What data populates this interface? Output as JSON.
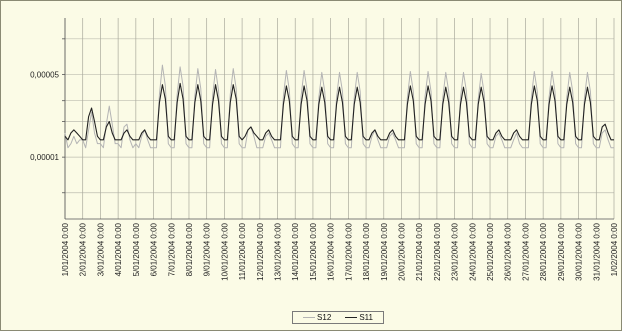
{
  "chart_data": {
    "type": "line",
    "title": "",
    "xlabel": "",
    "ylabel": "",
    "y_scale": "log",
    "ylim": [
      3e-06,
      0.00015
    ],
    "y_tick_labels": [
      {
        "value": 5e-05,
        "label": "0,00005"
      },
      {
        "value": 1e-05,
        "label": "0,00001"
      }
    ],
    "x_tick_labels": [
      "1/01/2004 0:00",
      "2/01/2004 0:00",
      "3/01/2004 0:00",
      "4/01/2004 0:00",
      "5/01/2004 0:00",
      "6/01/2004 0:00",
      "7/01/2004 0:00",
      "8/01/2004 0:00",
      "9/01/2004 0:00",
      "10/01/2004 0:00",
      "11/01/2004 0:00",
      "12/01/2004 0:00",
      "13/01/2004 0:00",
      "14/01/2004 0:00",
      "15/01/2004 0:00",
      "16/01/2004 0:00",
      "17/01/2004 0:00",
      "18/01/2004 0:00",
      "19/01/2004 0:00",
      "20/01/2004 0:00",
      "21/01/2004 0:00",
      "22/01/2004 0:00",
      "23/01/2004 0:00",
      "24/01/2004 0:00",
      "25/01/2004 0:00",
      "26/01/2004 0:00",
      "27/01/2004 0:00",
      "28/01/2004 0:00",
      "29/01/2004 0:00",
      "30/01/2004 0:00",
      "31/01/2004 0:00",
      "1/02/2004 0:00"
    ],
    "grid": true,
    "legend_position": "bottom",
    "samples_per_day": 6,
    "series": [
      {
        "name": "S12",
        "color": "#b4b4b4",
        "values": [
          1.6e-05,
          1.2e-05,
          1.3e-05,
          1.5e-05,
          1.3e-05,
          1.4e-05,
          1.4e-05,
          1.2e-05,
          1.7e-05,
          2.4e-05,
          1.6e-05,
          1.3e-05,
          1.3e-05,
          1.2e-05,
          1.9e-05,
          2.7e-05,
          1.9e-05,
          1.3e-05,
          1.3e-05,
          1.2e-05,
          1.8e-05,
          1.9e-05,
          1.4e-05,
          1.2e-05,
          1.3e-05,
          1.2e-05,
          1.5e-05,
          1.7e-05,
          1.4e-05,
          1.2e-05,
          1.2e-05,
          1.2e-05,
          3.4e-05,
          6e-05,
          4e-05,
          1.3e-05,
          1.2e-05,
          1.2e-05,
          3.4e-05,
          5.8e-05,
          4e-05,
          1.3e-05,
          1.2e-05,
          1.2e-05,
          3.3e-05,
          5.6e-05,
          3.8e-05,
          1.3e-05,
          1.2e-05,
          1.2e-05,
          3.3e-05,
          5.5e-05,
          3.7e-05,
          1.3e-05,
          1.2e-05,
          1.2e-05,
          3.4e-05,
          5.6e-05,
          3.8e-05,
          1.3e-05,
          1.2e-05,
          1.2e-05,
          1.7e-05,
          1.8e-05,
          1.5e-05,
          1.2e-05,
          1.2e-05,
          1.2e-05,
          1.5e-05,
          1.6e-05,
          1.4e-05,
          1.2e-05,
          1.2e-05,
          1.2e-05,
          3.3e-05,
          5.4e-05,
          3.7e-05,
          1.3e-05,
          1.2e-05,
          1.2e-05,
          3.3e-05,
          5.4e-05,
          3.7e-05,
          1.3e-05,
          1.2e-05,
          1.2e-05,
          3.2e-05,
          5.2e-05,
          3.6e-05,
          1.3e-05,
          1.2e-05,
          1.2e-05,
          3.2e-05,
          5.2e-05,
          3.6e-05,
          1.3e-05,
          1.2e-05,
          1.2e-05,
          3.2e-05,
          5.2e-05,
          3.6e-05,
          1.3e-05,
          1.2e-05,
          1.2e-05,
          1.5e-05,
          1.7e-05,
          1.4e-05,
          1.2e-05,
          1.2e-05,
          1.2e-05,
          1.5e-05,
          1.6e-05,
          1.4e-05,
          1.2e-05,
          1.2e-05,
          1.2e-05,
          3.2e-05,
          5.3e-05,
          3.6e-05,
          1.3e-05,
          1.2e-05,
          1.2e-05,
          3.3e-05,
          5.3e-05,
          3.6e-05,
          1.3e-05,
          1.2e-05,
          1.2e-05,
          3.2e-05,
          5.2e-05,
          3.6e-05,
          1.3e-05,
          1.2e-05,
          1.2e-05,
          3.2e-05,
          5.2e-05,
          3.6e-05,
          1.3e-05,
          1.2e-05,
          1.2e-05,
          3.1e-05,
          5.1e-05,
          3.5e-05,
          1.3e-05,
          1.2e-05,
          1.2e-05,
          1.5e-05,
          1.6e-05,
          1.4e-05,
          1.2e-05,
          1.2e-05,
          1.2e-05,
          1.4e-05,
          1.6e-05,
          1.3e-05,
          1.2e-05,
          1.2e-05,
          1.2e-05,
          3.2e-05,
          5.3e-05,
          3.6e-05,
          1.3e-05,
          1.2e-05,
          1.2e-05,
          3.2e-05,
          5.3e-05,
          3.6e-05,
          1.3e-05,
          1.2e-05,
          1.2e-05,
          3.2e-05,
          5.2e-05,
          3.6e-05,
          1.3e-05,
          1.2e-05,
          1.2e-05,
          3.2e-05,
          5.2e-05,
          3.6e-05,
          1.3e-05,
          1.2e-05,
          1.2e-05,
          1.6e-05,
          1.7e-05,
          1.4e-05,
          1.2e-05,
          1.2e-05
        ]
      },
      {
        "name": "S11",
        "color": "#222222",
        "values": [
          1.5e-05,
          1.4e-05,
          1.6e-05,
          1.7e-05,
          1.6e-05,
          1.5e-05,
          1.4e-05,
          1.4e-05,
          2.2e-05,
          2.6e-05,
          2e-05,
          1.5e-05,
          1.4e-05,
          1.4e-05,
          1.8e-05,
          2e-05,
          1.6e-05,
          1.4e-05,
          1.4e-05,
          1.4e-05,
          1.6e-05,
          1.7e-05,
          1.5e-05,
          1.4e-05,
          1.4e-05,
          1.4e-05,
          1.6e-05,
          1.7e-05,
          1.5e-05,
          1.4e-05,
          1.4e-05,
          1.4e-05,
          2.9e-05,
          4.1e-05,
          3.1e-05,
          1.5e-05,
          1.4e-05,
          1.4e-05,
          2.9e-05,
          4.2e-05,
          3.1e-05,
          1.5e-05,
          1.4e-05,
          1.4e-05,
          2.9e-05,
          4.1e-05,
          3e-05,
          1.5e-05,
          1.4e-05,
          1.4e-05,
          2.8e-05,
          4.1e-05,
          3e-05,
          1.5e-05,
          1.4e-05,
          1.4e-05,
          2.9e-05,
          4.1e-05,
          3.1e-05,
          1.5e-05,
          1.4e-05,
          1.5e-05,
          1.7e-05,
          1.8e-05,
          1.6e-05,
          1.5e-05,
          1.4e-05,
          1.4e-05,
          1.6e-05,
          1.7e-05,
          1.5e-05,
          1.4e-05,
          1.4e-05,
          1.4e-05,
          2.8e-05,
          4e-05,
          3e-05,
          1.5e-05,
          1.4e-05,
          1.4e-05,
          2.8e-05,
          4e-05,
          3e-05,
          1.5e-05,
          1.4e-05,
          1.4e-05,
          2.8e-05,
          3.9e-05,
          2.9e-05,
          1.5e-05,
          1.4e-05,
          1.4e-05,
          2.8e-05,
          3.9e-05,
          2.9e-05,
          1.5e-05,
          1.4e-05,
          1.4e-05,
          2.8e-05,
          3.9e-05,
          2.9e-05,
          1.5e-05,
          1.4e-05,
          1.4e-05,
          1.6e-05,
          1.7e-05,
          1.5e-05,
          1.4e-05,
          1.4e-05,
          1.4e-05,
          1.6e-05,
          1.7e-05,
          1.5e-05,
          1.4e-05,
          1.4e-05,
          1.4e-05,
          2.8e-05,
          4e-05,
          3e-05,
          1.5e-05,
          1.4e-05,
          1.4e-05,
          2.8e-05,
          4e-05,
          3e-05,
          1.5e-05,
          1.4e-05,
          1.4e-05,
          2.8e-05,
          3.9e-05,
          2.9e-05,
          1.5e-05,
          1.4e-05,
          1.4e-05,
          2.8e-05,
          3.9e-05,
          2.9e-05,
          1.5e-05,
          1.4e-05,
          1.4e-05,
          2.8e-05,
          3.9e-05,
          2.9e-05,
          1.5e-05,
          1.4e-05,
          1.4e-05,
          1.6e-05,
          1.7e-05,
          1.5e-05,
          1.4e-05,
          1.4e-05,
          1.4e-05,
          1.6e-05,
          1.7e-05,
          1.5e-05,
          1.4e-05,
          1.4e-05,
          1.4e-05,
          2.8e-05,
          4e-05,
          3e-05,
          1.5e-05,
          1.4e-05,
          1.4e-05,
          2.8e-05,
          4e-05,
          3e-05,
          1.5e-05,
          1.4e-05,
          1.4e-05,
          2.8e-05,
          3.9e-05,
          2.9e-05,
          1.5e-05,
          1.4e-05,
          1.4e-05,
          2.8e-05,
          3.9e-05,
          2.9e-05,
          1.5e-05,
          1.4e-05,
          1.4e-05,
          1.8e-05,
          1.9e-05,
          1.6e-05,
          1.4e-05,
          1.4e-05
        ]
      }
    ]
  }
}
